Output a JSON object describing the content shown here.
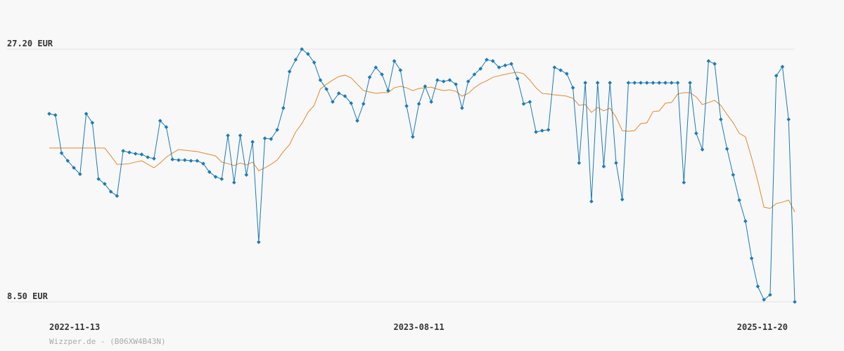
{
  "chart_data": {
    "type": "line",
    "footer": "Wizzper.de - (B06XW4B43N)",
    "categories": [
      "2022-11-13",
      null,
      null,
      null,
      null,
      null,
      null,
      null,
      null,
      null,
      null,
      null,
      null,
      null,
      null,
      null,
      null,
      null,
      null,
      null,
      null,
      null,
      null,
      null,
      null,
      null,
      null,
      null,
      null,
      null,
      null,
      null,
      null,
      null,
      null,
      null,
      null,
      null,
      null,
      null,
      null,
      null,
      null,
      null,
      null,
      null,
      null,
      null,
      null,
      null,
      null,
      null,
      null,
      null,
      null,
      null,
      null,
      null,
      null,
      null,
      "2023-08-11",
      null,
      null,
      null,
      null,
      null,
      null,
      null,
      null,
      null,
      null,
      null,
      null,
      null,
      null,
      null,
      null,
      null,
      null,
      null,
      null,
      null,
      null,
      null,
      null,
      null,
      null,
      null,
      null,
      null,
      null,
      null,
      null,
      null,
      null,
      null,
      null,
      null,
      null,
      null,
      null,
      null,
      null,
      null,
      null,
      null,
      null,
      null,
      null,
      null,
      null,
      null,
      null,
      null,
      null,
      null,
      null,
      null,
      null,
      null,
      null,
      "2025-11-20"
    ],
    "series": [
      {
        "color": "#1b7ab5",
        "markers": true,
        "values": [
          22.42,
          22.32,
          19.51,
          18.94,
          18.42,
          17.95,
          22.42,
          21.75,
          17.59,
          17.23,
          16.65,
          16.34,
          19.67,
          19.56,
          19.46,
          19.41,
          19.2,
          19.1,
          21.9,
          21.43,
          19.04,
          18.99,
          18.99,
          18.94,
          18.94,
          18.73,
          18.11,
          17.75,
          17.59,
          20.81,
          17.33,
          20.81,
          17.9,
          20.34,
          12.92,
          20.6,
          20.55,
          21.23,
          22.84,
          25.54,
          26.42,
          27.2,
          26.84,
          26.21,
          24.91,
          24.24,
          23.3,
          23.93,
          23.72,
          23.2,
          21.9,
          23.15,
          25.12,
          25.85,
          25.33,
          24.13,
          26.32,
          25.64,
          22.99,
          20.71,
          23.15,
          24.45,
          23.3,
          24.91,
          24.81,
          24.91,
          24.6,
          22.84,
          24.81,
          25.33,
          25.75,
          26.42,
          26.32,
          25.85,
          26.0,
          26.11,
          25.02,
          23.15,
          23.3,
          21.07,
          21.17,
          21.23,
          25.85,
          25.64,
          25.38,
          24.34,
          18.78,
          24.71,
          15.93,
          24.71,
          18.52,
          24.71,
          18.78,
          16.08,
          24.71,
          24.71,
          24.71,
          24.71,
          24.71,
          24.71,
          24.71,
          24.71,
          24.71,
          17.33,
          24.71,
          20.97,
          19.77,
          26.32,
          26.11,
          22.0,
          19.82,
          17.9,
          16.03,
          14.47,
          11.72,
          9.64,
          8.66,
          9.02,
          25.23,
          25.9,
          22.0,
          8.5
        ]
      },
      {
        "color": "#e08a2c",
        "markers": false,
        "values": [
          19.88,
          19.88,
          19.88,
          19.88,
          19.88,
          19.88,
          19.88,
          19.88,
          19.88,
          19.88,
          19.3,
          18.68,
          18.68,
          18.73,
          18.84,
          18.94,
          18.68,
          18.42,
          18.78,
          19.2,
          19.51,
          19.77,
          19.72,
          19.67,
          19.62,
          19.51,
          19.41,
          19.3,
          18.84,
          18.73,
          18.58,
          18.78,
          18.63,
          18.84,
          18.21,
          18.42,
          18.68,
          18.99,
          19.62,
          20.14,
          21.07,
          21.69,
          22.52,
          23.04,
          24.24,
          24.6,
          24.91,
          25.17,
          25.28,
          25.07,
          24.6,
          24.13,
          24.03,
          23.93,
          23.98,
          23.98,
          24.34,
          24.45,
          24.34,
          24.13,
          24.29,
          24.34,
          24.39,
          24.24,
          24.13,
          24.19,
          24.08,
          23.72,
          23.93,
          24.34,
          24.65,
          24.86,
          25.12,
          25.23,
          25.33,
          25.43,
          25.49,
          25.38,
          24.91,
          24.34,
          23.93,
          23.88,
          23.82,
          23.77,
          23.72,
          23.56,
          23.04,
          23.1,
          22.52,
          22.89,
          22.63,
          22.84,
          22.16,
          21.17,
          21.12,
          21.17,
          21.69,
          21.75,
          22.58,
          22.63,
          23.2,
          23.25,
          23.88,
          23.98,
          23.98,
          23.67,
          23.1,
          23.25,
          23.41,
          23.04,
          22.37,
          21.75,
          20.97,
          20.71,
          19.15,
          17.43,
          15.51,
          15.41,
          15.77,
          15.88,
          16.03,
          15.15
        ]
      }
    ],
    "ylim": [
      8.5,
      27.2
    ],
    "yticks": [
      {
        "value": 8.5,
        "label": "8.50 EUR"
      },
      {
        "value": 27.2,
        "label": "27.20 EUR"
      }
    ],
    "grid": true
  }
}
